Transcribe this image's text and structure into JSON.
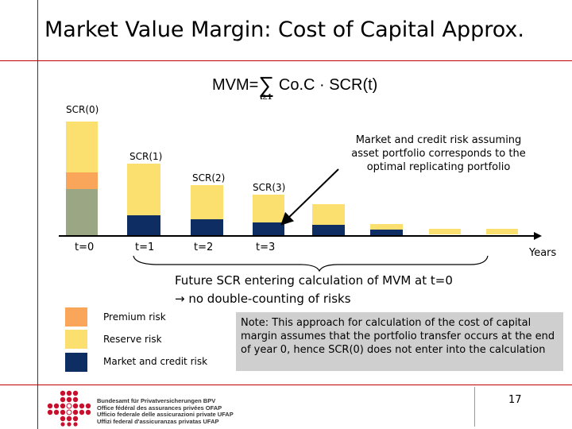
{
  "title": "Market Value Margin: Cost of Capital Approx.",
  "formula": {
    "lhs": "MVM=",
    "sigma": "∑",
    "rhs": "Co.C · SCR(t)",
    "subscript": "t≥1"
  },
  "bar_labels": [
    "SCR(0)",
    "SCR(1)",
    "SCR(2)",
    "SCR(3)"
  ],
  "x_ticks": [
    "t=0",
    "t=1",
    "t=2",
    "t=3"
  ],
  "x_axis_label": "Years",
  "annotation": "Market and credit risk assuming asset portfolio corresponds to the optimal replicating portfolio",
  "future_line1": "Future SCR entering calculation of MVM at t=0",
  "future_line2_arrow": "→",
  "future_line2": "no double-counting of risks",
  "legend": [
    {
      "label": "Premium risk",
      "color": "#f9a65a"
    },
    {
      "label": "Reserve risk",
      "color": "#fbe070"
    },
    {
      "label": "Market and credit risk",
      "color": "#0e2e63"
    }
  ],
  "note": "Note: This approach for calculation of the cost of capital margin assumes that the portfolio transfer occurs at the end of year 0, hence SCR(0) does not enter into the calculation",
  "page_number": "17",
  "logo_lines": [
    "Bundesamt für Privatversicherungen BPV",
    "Office fédéral des assurances privées OFAP",
    "Ufficio federale delle assicurazioni private UFAP",
    "Uffizi federal d'assicuranzas privatas UFAP"
  ],
  "colors": {
    "accent": "#c00000",
    "premium": "#f9a65a",
    "reserve": "#fbe070",
    "market": "#0e2e63",
    "scr0_other": "#9ba685",
    "note_bg": "#cfcfcf"
  }
}
